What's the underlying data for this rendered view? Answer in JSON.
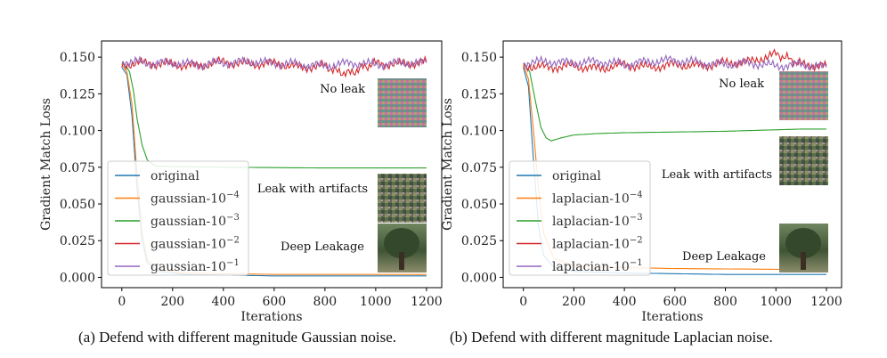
{
  "colors": {
    "original": "#1f77b4",
    "magnitude_1e-4": "#ff7f0e",
    "magnitude_1e-3": "#2ca02c",
    "magnitude_1e-2": "#d62728",
    "magnitude_1e-1": "#9467bd"
  },
  "chart_data": [
    {
      "type": "line",
      "caption": "(a) Defend with different magnitude Gaussian noise.",
      "xlabel": "Iterations",
      "ylabel": "Gradient Match Loss",
      "xlim": [
        -80,
        1260
      ],
      "ylim": [
        -0.007,
        0.161
      ],
      "x_ticks": [
        "0",
        "200",
        "400",
        "600",
        "800",
        "1000",
        "1200"
      ],
      "y_ticks": [
        "0.000",
        "0.025",
        "0.050",
        "0.075",
        "0.100",
        "0.125",
        "0.150"
      ],
      "grid": false,
      "legend_position": "lower-left",
      "annotations": [
        "No leak",
        "Leak with artifacts",
        "Deep Leakage"
      ],
      "series": [
        {
          "name": "original",
          "color_key": "original",
          "points": [
            [
              0,
              0.143
            ],
            [
              20,
              0.138
            ],
            [
              40,
              0.11
            ],
            [
              60,
              0.06
            ],
            [
              80,
              0.025
            ],
            [
              100,
              0.01
            ],
            [
              150,
              0.004
            ],
            [
              250,
              0.002
            ],
            [
              600,
              0.001
            ],
            [
              1200,
              0.001
            ]
          ]
        },
        {
          "name": "gaussian-10",
          "sup": "−4",
          "color_key": "magnitude_1e-4",
          "points": [
            [
              0,
              0.145
            ],
            [
              20,
              0.14
            ],
            [
              40,
              0.118
            ],
            [
              60,
              0.07
            ],
            [
              80,
              0.03
            ],
            [
              100,
              0.012
            ],
            [
              150,
              0.005
            ],
            [
              250,
              0.003
            ],
            [
              600,
              0.002
            ],
            [
              1200,
              0.002
            ]
          ]
        },
        {
          "name": "gaussian-10",
          "sup": "−3",
          "color_key": "magnitude_1e-3",
          "points": [
            [
              0,
              0.146
            ],
            [
              20,
              0.143
            ],
            [
              30,
              0.14
            ],
            [
              45,
              0.128
            ],
            [
              60,
              0.108
            ],
            [
              80,
              0.09
            ],
            [
              100,
              0.08
            ],
            [
              130,
              0.076
            ],
            [
              200,
              0.0755
            ],
            [
              400,
              0.075
            ],
            [
              800,
              0.0745
            ],
            [
              1200,
              0.0745
            ]
          ]
        },
        {
          "name": "gaussian-10",
          "sup": "−2",
          "color_key": "magnitude_1e-2",
          "points": [
            [
              0,
              0.145
            ],
            [
              100,
              0.146
            ],
            [
              200,
              0.145
            ],
            [
              300,
              0.144
            ],
            [
              400,
              0.147
            ],
            [
              500,
              0.145
            ],
            [
              600,
              0.146
            ],
            [
              700,
              0.143
            ],
            [
              800,
              0.144
            ],
            [
              850,
              0.14
            ],
            [
              900,
              0.139
            ],
            [
              950,
              0.143
            ],
            [
              1000,
              0.146
            ],
            [
              1100,
              0.145
            ],
            [
              1200,
              0.147
            ]
          ]
        },
        {
          "name": "gaussian-10",
          "sup": "−1",
          "color_key": "magnitude_1e-1",
          "points": [
            [
              0,
              0.147
            ],
            [
              100,
              0.146
            ],
            [
              200,
              0.146
            ],
            [
              300,
              0.145
            ],
            [
              400,
              0.146
            ],
            [
              500,
              0.147
            ],
            [
              600,
              0.146
            ],
            [
              700,
              0.145
            ],
            [
              800,
              0.144
            ],
            [
              900,
              0.146
            ],
            [
              1000,
              0.145
            ],
            [
              1100,
              0.146
            ],
            [
              1200,
              0.146
            ]
          ]
        }
      ]
    },
    {
      "type": "line",
      "caption": "(b) Defend with different magnitude Laplacian noise.",
      "xlabel": "Iterations",
      "ylabel": "Gradient Match Loss",
      "xlim": [
        -80,
        1260
      ],
      "ylim": [
        -0.007,
        0.161
      ],
      "x_ticks": [
        "0",
        "200",
        "400",
        "600",
        "800",
        "1000",
        "1200"
      ],
      "y_ticks": [
        "0.000",
        "0.025",
        "0.050",
        "0.075",
        "0.100",
        "0.125",
        "0.150"
      ],
      "grid": false,
      "legend_position": "lower-left",
      "annotations": [
        "No leak",
        "Leak with artifacts",
        "Deep Leakage"
      ],
      "series": [
        {
          "name": "original",
          "color_key": "original",
          "points": [
            [
              0,
              0.143
            ],
            [
              20,
              0.13
            ],
            [
              40,
              0.08
            ],
            [
              60,
              0.035
            ],
            [
              80,
              0.015
            ],
            [
              120,
              0.007
            ],
            [
              200,
              0.004
            ],
            [
              400,
              0.003
            ],
            [
              800,
              0.002
            ],
            [
              1200,
              0.002
            ]
          ]
        },
        {
          "name": "laplacian-10",
          "sup": "−4",
          "color_key": "magnitude_1e-4",
          "points": [
            [
              0,
              0.145
            ],
            [
              20,
              0.135
            ],
            [
              40,
              0.1
            ],
            [
              60,
              0.06
            ],
            [
              80,
              0.03
            ],
            [
              120,
              0.013
            ],
            [
              200,
              0.008
            ],
            [
              300,
              0.007
            ],
            [
              600,
              0.006
            ],
            [
              1000,
              0.0055
            ],
            [
              1200,
              0.005
            ]
          ]
        },
        {
          "name": "laplacian-10",
          "sup": "−3",
          "color_key": "magnitude_1e-3",
          "points": [
            [
              0,
              0.146
            ],
            [
              25,
              0.14
            ],
            [
              50,
              0.118
            ],
            [
              70,
              0.102
            ],
            [
              90,
              0.095
            ],
            [
              110,
              0.093
            ],
            [
              150,
              0.095
            ],
            [
              200,
              0.097
            ],
            [
              300,
              0.098
            ],
            [
              400,
              0.0985
            ],
            [
              600,
              0.099
            ],
            [
              800,
              0.0995
            ],
            [
              1000,
              0.1005
            ],
            [
              1100,
              0.101
            ],
            [
              1200,
              0.101
            ]
          ]
        },
        {
          "name": "laplacian-10",
          "sup": "−2",
          "color_key": "magnitude_1e-2",
          "points": [
            [
              0,
              0.144
            ],
            [
              100,
              0.143
            ],
            [
              200,
              0.144
            ],
            [
              300,
              0.142
            ],
            [
              400,
              0.145
            ],
            [
              500,
              0.143
            ],
            [
              600,
              0.145
            ],
            [
              700,
              0.144
            ],
            [
              800,
              0.146
            ],
            [
              900,
              0.147
            ],
            [
              1000,
              0.152
            ],
            [
              1050,
              0.149
            ],
            [
              1100,
              0.145
            ],
            [
              1200,
              0.144
            ]
          ]
        },
        {
          "name": "laplacian-10",
          "sup": "−1",
          "color_key": "magnitude_1e-1",
          "points": [
            [
              0,
              0.146
            ],
            [
              100,
              0.147
            ],
            [
              200,
              0.146
            ],
            [
              300,
              0.147
            ],
            [
              400,
              0.145
            ],
            [
              500,
              0.147
            ],
            [
              600,
              0.148
            ],
            [
              700,
              0.146
            ],
            [
              800,
              0.145
            ],
            [
              900,
              0.146
            ],
            [
              1000,
              0.144
            ],
            [
              1100,
              0.145
            ],
            [
              1200,
              0.143
            ]
          ]
        }
      ]
    }
  ]
}
